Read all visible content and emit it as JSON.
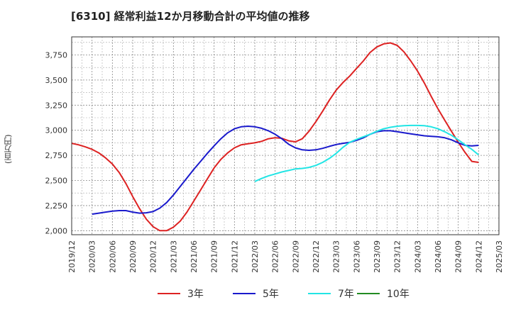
{
  "chart_data": {
    "type": "line",
    "title": "[6310]  経常利益12か月移動合計の平均値の推移",
    "ylabel": "(百万円)",
    "xlabel": "",
    "ylim": [
      1960,
      3930
    ],
    "yticks": [
      2000,
      2250,
      2500,
      2750,
      3000,
      3250,
      3500,
      3750
    ],
    "ytick_labels": [
      "2,000",
      "2,250",
      "2,500",
      "2,750",
      "3,000",
      "3,250",
      "3,500",
      "3,750"
    ],
    "xlim": [
      "2019-12",
      "2025-03"
    ],
    "xticks": [
      "2019/12",
      "2020/03",
      "2020/06",
      "2020/09",
      "2020/12",
      "2021/03",
      "2021/06",
      "2021/09",
      "2021/12",
      "2022/03",
      "2022/06",
      "2022/09",
      "2022/12",
      "2023/03",
      "2023/06",
      "2023/09",
      "2023/12",
      "2024/03",
      "2024/06",
      "2024/09",
      "2024/12",
      "2025/03"
    ],
    "grid": true,
    "legend_position": "bottom",
    "series": [
      {
        "name": "3年",
        "color": "#dd2222",
        "x": [
          "2019-12",
          "2020-01",
          "2020-02",
          "2020-03",
          "2020-04",
          "2020-05",
          "2020-06",
          "2020-07",
          "2020-08",
          "2020-09",
          "2020-10",
          "2020-11",
          "2020-12",
          "2021-01",
          "2021-02",
          "2021-03",
          "2021-04",
          "2021-05",
          "2021-06",
          "2021-07",
          "2021-08",
          "2021-09",
          "2021-10",
          "2021-11",
          "2021-12",
          "2022-01",
          "2022-02",
          "2022-03",
          "2022-04",
          "2022-05",
          "2022-06",
          "2022-07",
          "2022-08",
          "2022-09",
          "2022-10",
          "2022-11",
          "2022-12",
          "2023-01",
          "2023-02",
          "2023-03",
          "2023-04",
          "2023-05",
          "2023-06",
          "2023-07",
          "2023-08",
          "2023-09",
          "2023-10",
          "2023-11",
          "2023-12",
          "2024-01",
          "2024-02",
          "2024-03",
          "2024-04",
          "2024-05",
          "2024-06",
          "2024-07",
          "2024-08",
          "2024-09",
          "2024-10",
          "2024-11",
          "2024-12"
        ],
        "values": [
          2870,
          2855,
          2835,
          2810,
          2775,
          2725,
          2665,
          2580,
          2470,
          2340,
          2220,
          2115,
          2040,
          2000,
          2000,
          2035,
          2095,
          2185,
          2295,
          2405,
          2515,
          2625,
          2710,
          2775,
          2825,
          2855,
          2865,
          2875,
          2890,
          2915,
          2925,
          2920,
          2895,
          2885,
          2915,
          2990,
          3085,
          3190,
          3300,
          3400,
          3475,
          3540,
          3615,
          3690,
          3775,
          3830,
          3860,
          3870,
          3845,
          3780,
          3690,
          3590,
          3470,
          3340,
          3215,
          3100,
          2990,
          2880,
          2780,
          2690,
          2680
        ]
      },
      {
        "name": "5年",
        "color": "#1a1acc",
        "x": [
          "2020-03",
          "2020-04",
          "2020-05",
          "2020-06",
          "2020-07",
          "2020-08",
          "2020-09",
          "2020-10",
          "2020-11",
          "2020-12",
          "2021-01",
          "2021-02",
          "2021-03",
          "2021-04",
          "2021-05",
          "2021-06",
          "2021-07",
          "2021-08",
          "2021-09",
          "2021-10",
          "2021-11",
          "2021-12",
          "2022-01",
          "2022-02",
          "2022-03",
          "2022-04",
          "2022-05",
          "2022-06",
          "2022-07",
          "2022-08",
          "2022-09",
          "2022-10",
          "2022-11",
          "2022-12",
          "2023-01",
          "2023-02",
          "2023-03",
          "2023-04",
          "2023-05",
          "2023-06",
          "2023-07",
          "2023-08",
          "2023-09",
          "2023-10",
          "2023-11",
          "2023-12",
          "2024-01",
          "2024-02",
          "2024-03",
          "2024-04",
          "2024-05",
          "2024-06",
          "2024-07",
          "2024-08",
          "2024-09",
          "2024-10",
          "2024-11",
          "2024-12"
        ],
        "values": [
          2165,
          2175,
          2185,
          2195,
          2200,
          2200,
          2185,
          2175,
          2178,
          2190,
          2225,
          2280,
          2355,
          2440,
          2525,
          2610,
          2690,
          2770,
          2845,
          2915,
          2975,
          3015,
          3035,
          3040,
          3035,
          3020,
          2995,
          2960,
          2915,
          2860,
          2825,
          2805,
          2800,
          2805,
          2820,
          2840,
          2858,
          2870,
          2880,
          2900,
          2925,
          2960,
          2985,
          2995,
          2995,
          2985,
          2975,
          2965,
          2955,
          2945,
          2940,
          2935,
          2925,
          2905,
          2875,
          2850,
          2845,
          2850
        ]
      },
      {
        "name": "7年",
        "color": "#22e5e5",
        "x": [
          "2022-03",
          "2022-04",
          "2022-05",
          "2022-06",
          "2022-07",
          "2022-08",
          "2022-09",
          "2022-10",
          "2022-11",
          "2022-12",
          "2023-01",
          "2023-02",
          "2023-03",
          "2023-04",
          "2023-05",
          "2023-06",
          "2023-07",
          "2023-08",
          "2023-09",
          "2023-10",
          "2023-11",
          "2023-12",
          "2024-01",
          "2024-02",
          "2024-03",
          "2024-04",
          "2024-05",
          "2024-06",
          "2024-07",
          "2024-08",
          "2024-09",
          "2024-10",
          "2024-11",
          "2024-12"
        ],
        "values": [
          2490,
          2520,
          2545,
          2565,
          2585,
          2600,
          2615,
          2620,
          2630,
          2650,
          2680,
          2720,
          2770,
          2830,
          2880,
          2910,
          2935,
          2960,
          2990,
          3015,
          3030,
          3040,
          3045,
          3048,
          3048,
          3045,
          3035,
          3015,
          2985,
          2950,
          2905,
          2855,
          2810,
          2755
        ]
      },
      {
        "name": "10年",
        "color": "#228b22",
        "x": [],
        "values": []
      }
    ]
  }
}
